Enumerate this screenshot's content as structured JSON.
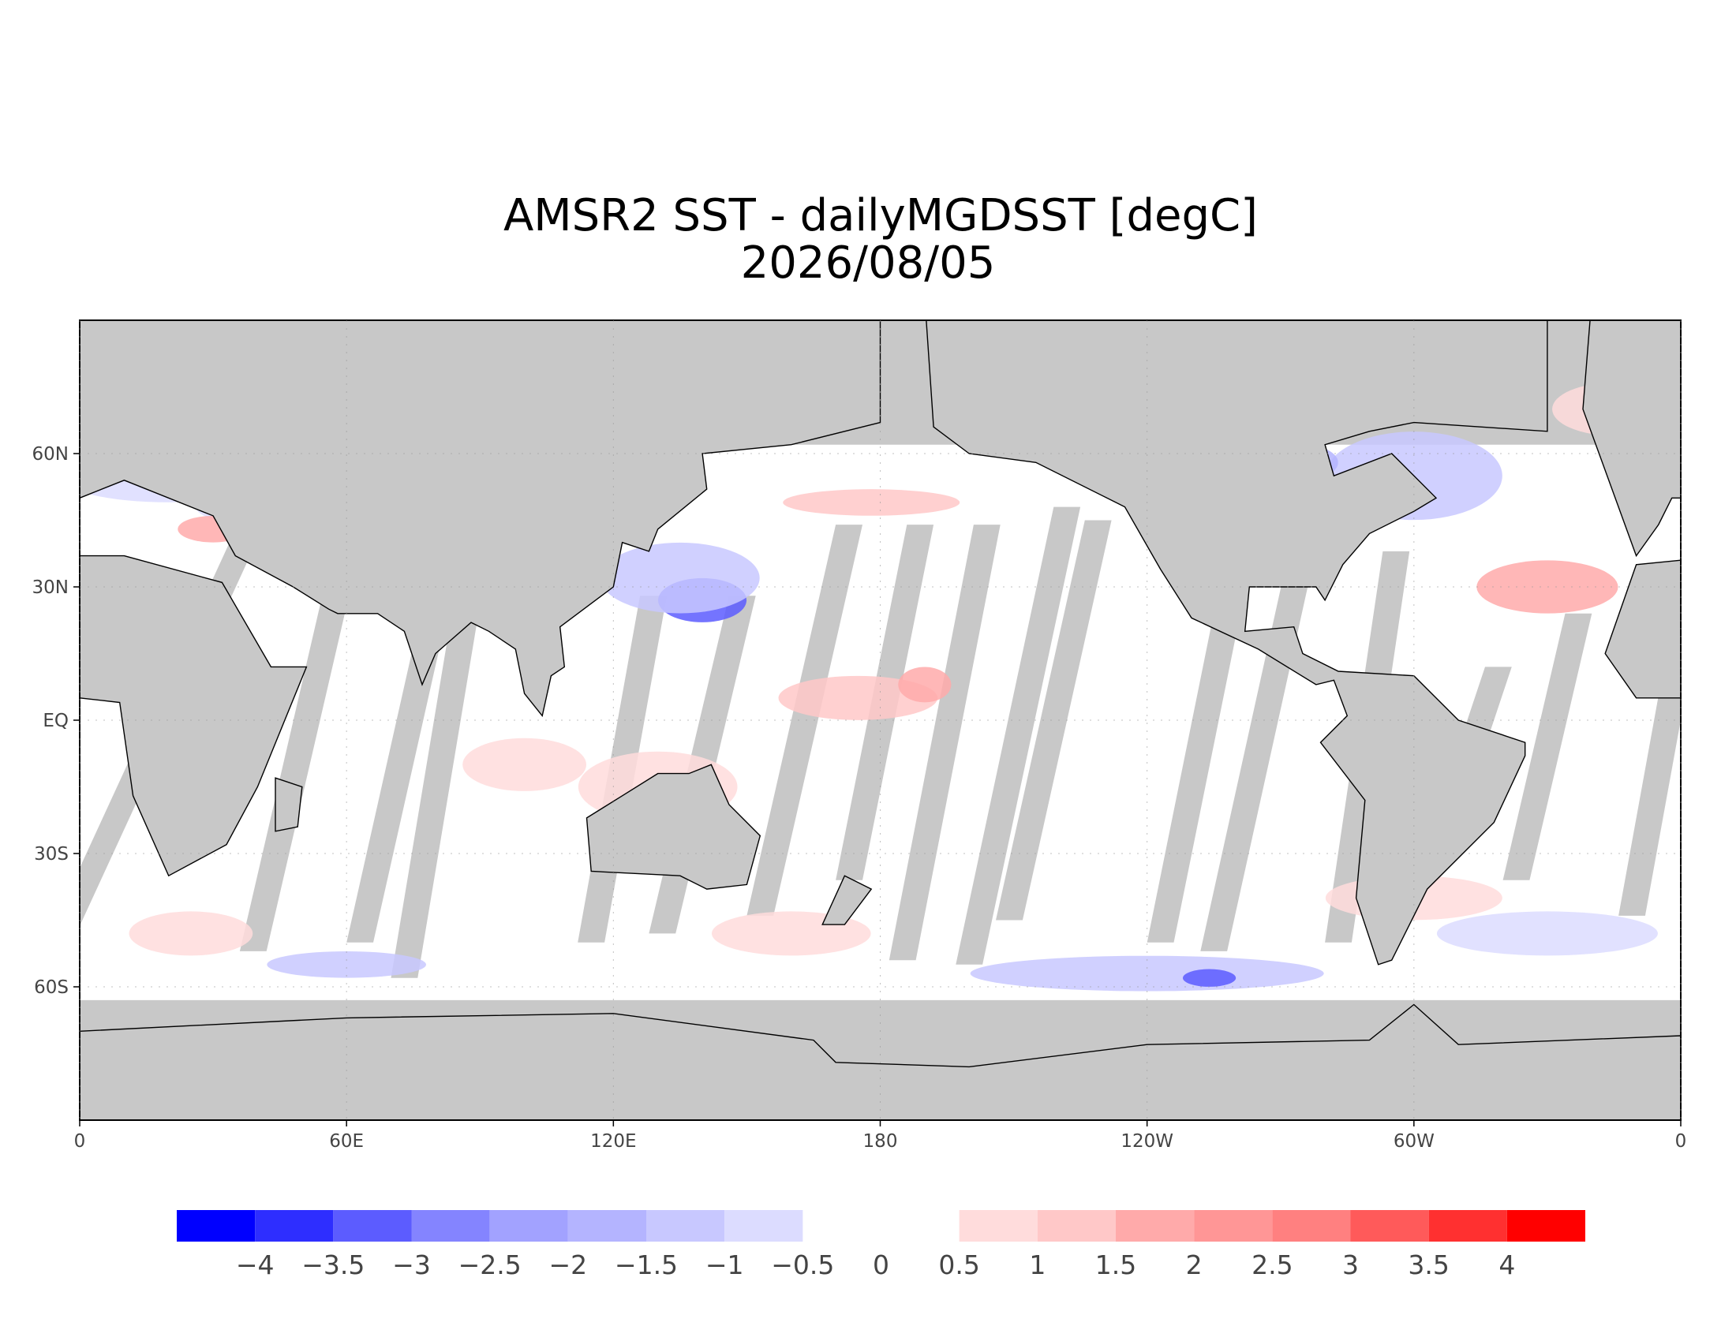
{
  "map": {
    "title": "AMSR2 SST - dailyMGDSST [degC]",
    "date": "2026/08/05",
    "lon_range": [
      0,
      360
    ],
    "lat_range": [
      -90,
      90
    ],
    "grid": true,
    "lat_ticks": [
      {
        "value": 60,
        "label": "60N"
      },
      {
        "value": 30,
        "label": "30N"
      },
      {
        "value": 0,
        "label": "EQ"
      },
      {
        "value": -30,
        "label": "30S"
      },
      {
        "value": -60,
        "label": "60S"
      }
    ],
    "lon_ticks": [
      0,
      {
        "value": 60,
        "label": "60E"
      },
      {
        "value": 120,
        "label": "120E"
      },
      180,
      {
        "value": 240,
        "label": "120W"
      },
      {
        "value": 300,
        "label": "60W"
      },
      {
        "value": 360,
        "label": "0"
      }
    ],
    "colorbar": {
      "range": [
        -4.5,
        4.5
      ],
      "levels": [
        {
          "value": -4,
          "label": "−4"
        },
        {
          "value": -3.5,
          "label": "−3.5"
        },
        {
          "value": -3,
          "label": "−3"
        },
        {
          "value": -2.5,
          "label": "−2.5"
        },
        {
          "value": -2,
          "label": "−2"
        },
        {
          "value": -1.5,
          "label": "−1.5"
        },
        {
          "value": -1,
          "label": "−1"
        },
        {
          "value": -0.5,
          "label": "−0.5"
        },
        0,
        0.5,
        1,
        1.5,
        2,
        2.5,
        3,
        3.5,
        4
      ],
      "negative_colors": [
        "#0000ff",
        "#2e2eff",
        "#5c5cff",
        "#8484ff",
        "#a2a2ff",
        "#b4b4ff",
        "#c8c8ff",
        "#dcdcff"
      ],
      "positive_colors": [
        "#ffdcdc",
        "#ffc8c8",
        "#ffaaaa",
        "#ff9696",
        "#ff8080",
        "#ff5a5a",
        "#ff3030",
        "#ff0000"
      ]
    }
  }
}
